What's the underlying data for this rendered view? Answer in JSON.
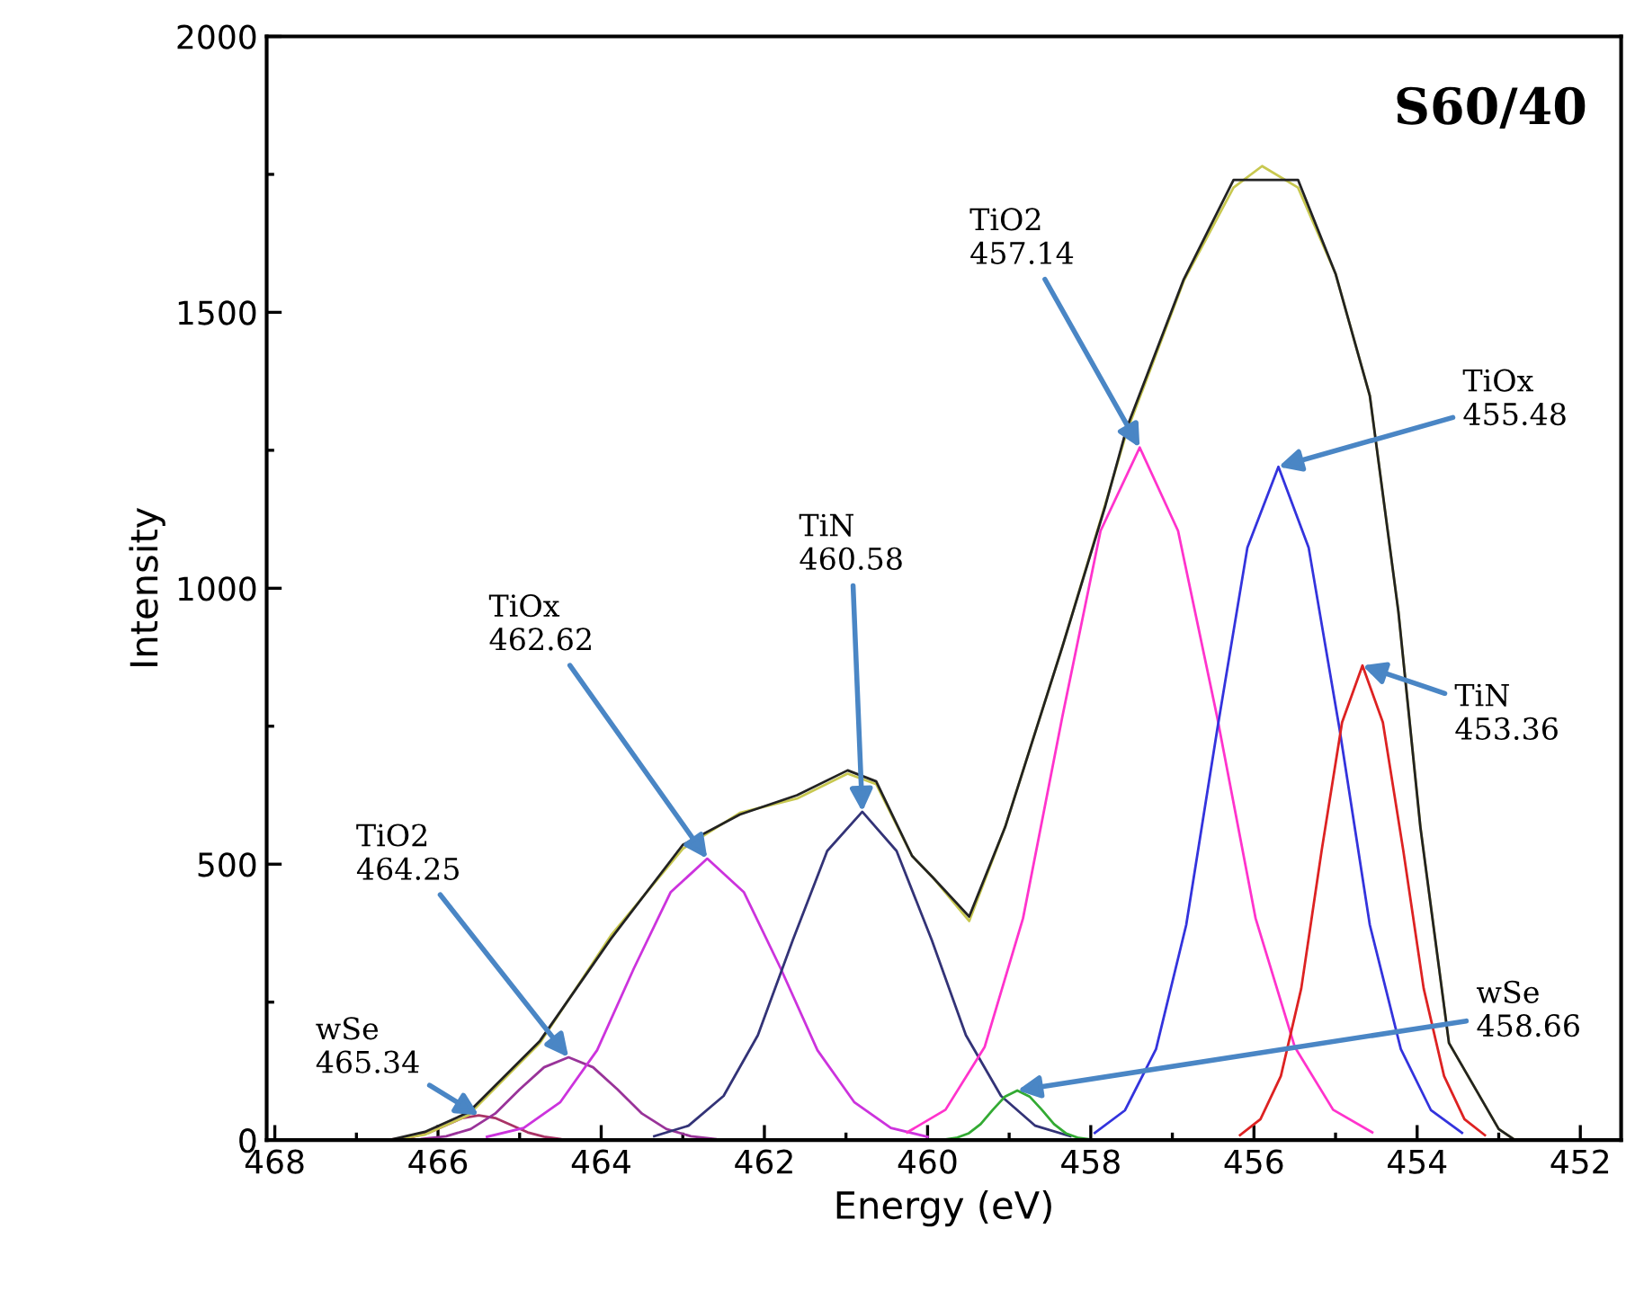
{
  "chart_data": {
    "type": "line",
    "title": "S60/40",
    "xlabel": "Energy (eV)",
    "ylabel": "Intensity",
    "xlim": [
      468.1,
      451.5
    ],
    "ylim": [
      0,
      2000
    ],
    "xticks": [
      468,
      {
        "value": 467,
        "label": null
      },
      466,
      {
        "value": 465,
        "label": null
      },
      464,
      {
        "value": 463,
        "label": null
      },
      462,
      {
        "value": 461,
        "label": null
      },
      460,
      {
        "value": 459,
        "label": null
      },
      458,
      {
        "value": 457,
        "label": null
      },
      456,
      {
        "value": 455,
        "label": null
      },
      454,
      {
        "value": 453,
        "label": null
      },
      452
    ],
    "yticks": [
      0,
      {
        "value": 250,
        "label": null
      },
      500,
      {
        "value": 750,
        "label": null
      },
      1000,
      {
        "value": 1250,
        "label": null
      },
      1500,
      {
        "value": 1750,
        "label": null
      },
      2000
    ],
    "grid": false,
    "legend": false,
    "marker": "none",
    "line_style": "solid",
    "series": [
      {
        "color": "#aa3366",
        "x": [
          466.7,
          466.5,
          466.3,
          466.1,
          465.9,
          465.7,
          465.5,
          465.3,
          465.1,
          464.9,
          464.7,
          464.5
        ],
        "values": [
          0,
          2,
          6,
          14,
          27,
          40,
          45,
          40,
          27,
          14,
          6,
          2
        ]
      },
      {
        "color": "#993399",
        "x": [
          466.2,
          465.9,
          465.6,
          465.3,
          465.0,
          464.7,
          464.4,
          464.1,
          463.8,
          463.5,
          463.2,
          462.9,
          462.6
        ],
        "values": [
          2,
          7,
          20,
          48,
          92,
          132,
          150,
          132,
          92,
          48,
          20,
          7,
          2
        ]
      },
      {
        "color": "#cc33dd",
        "x": [
          465.4,
          464.95,
          464.5,
          464.05,
          463.6,
          463.15,
          462.7,
          462.25,
          461.8,
          461.35,
          460.9,
          460.45,
          460.0
        ],
        "values": [
          6,
          22,
          69,
          163,
          311,
          449,
          510,
          449,
          311,
          163,
          69,
          22,
          6
        ]
      },
      {
        "color": "#333377",
        "x": [
          463.35,
          462.93,
          462.5,
          462.08,
          461.65,
          461.23,
          460.8,
          460.38,
          459.95,
          459.53,
          459.1,
          458.68,
          458.25
        ],
        "values": [
          7,
          26,
          80,
          190,
          363,
          524,
          595,
          524,
          363,
          190,
          80,
          26,
          7
        ]
      },
      {
        "color": "#33aa33",
        "x": [
          459.8,
          459.65,
          459.5,
          459.35,
          459.2,
          459.05,
          458.9,
          458.75,
          458.6,
          458.45,
          458.3,
          458.15,
          458.0
        ],
        "values": [
          1,
          4,
          12,
          29,
          55,
          79,
          90,
          79,
          55,
          29,
          12,
          4,
          1
        ]
      },
      {
        "color": "#ff33cc",
        "x": [
          460.25,
          459.78,
          459.3,
          458.83,
          458.35,
          457.88,
          457.4,
          456.93,
          456.45,
          455.98,
          455.5,
          455.03,
          454.55
        ],
        "values": [
          14,
          55,
          169,
          402,
          766,
          1104,
          1255,
          1104,
          766,
          402,
          169,
          55,
          14
        ]
      },
      {
        "color": "#3333dd",
        "x": [
          457.95,
          457.58,
          457.2,
          456.83,
          456.45,
          456.08,
          455.7,
          455.33,
          454.95,
          454.58,
          454.2,
          453.83,
          453.45
        ],
        "values": [
          13,
          54,
          165,
          390,
          744,
          1074,
          1220,
          1074,
          744,
          390,
          165,
          54,
          13
        ]
      },
      {
        "color": "#dd2222",
        "x": [
          456.17,
          455.92,
          455.67,
          455.42,
          455.17,
          454.92,
          454.67,
          454.42,
          454.17,
          453.92,
          453.67,
          453.42,
          453.17
        ],
        "values": [
          9,
          38,
          116,
          275,
          525,
          757,
          860,
          757,
          525,
          275,
          116,
          38,
          9
        ]
      },
      {
        "color": "#c8c850",
        "x": [
          466.6,
          466.16,
          465.63,
          464.75,
          463.88,
          463.0,
          462.3,
          461.6,
          460.98,
          460.63,
          460.19,
          459.93,
          459.49,
          459.05,
          458.35,
          457.82,
          457.56,
          456.86,
          456.25,
          455.9,
          455.46,
          455.0,
          454.58,
          454.23,
          453.96,
          453.61,
          453.0,
          452.8
        ],
        "values": [
          0,
          10,
          45,
          176,
          371,
          528,
          593,
          619,
          664,
          645,
          515,
          475,
          397,
          567,
          893,
          1153,
          1283,
          1557,
          1726,
          1765,
          1726,
          1570,
          1349,
          958,
          567,
          176,
          20,
          0
        ]
      },
      {
        "color": "#222222",
        "x": [
          466.6,
          466.16,
          465.63,
          464.75,
          463.88,
          463.0,
          462.3,
          461.6,
          460.98,
          460.63,
          460.19,
          459.93,
          459.49,
          459.05,
          458.35,
          457.82,
          457.56,
          456.86,
          456.25,
          455.9,
          455.46,
          455.0,
          454.58,
          454.23,
          453.96,
          453.61,
          453.0,
          452.8
        ],
        "values": [
          0,
          15,
          50,
          180,
          365,
          535,
          590,
          625,
          670,
          650,
          515,
          475,
          405,
          567,
          893,
          1150,
          1290,
          1560,
          1740,
          1740,
          1740,
          1570,
          1349,
          958,
          567,
          176,
          20,
          0
        ]
      }
    ],
    "annotations": [
      {
        "text": "wSe\n465.34",
        "x": 465.5,
        "y": 45
      },
      {
        "text": "TiO2\n464.25",
        "x": 464.4,
        "y": 150
      },
      {
        "text": "TiOx\n462.62",
        "x": 462.7,
        "y": 510
      },
      {
        "text": "TiN\n460.58",
        "x": 460.8,
        "y": 595
      },
      {
        "text": "TiO2\n457.14",
        "x": 457.4,
        "y": 1255
      },
      {
        "text": "TiOx\n455.48",
        "x": 455.7,
        "y": 1220
      },
      {
        "text": "TiN\n453.36",
        "x": 454.67,
        "y": 860
      },
      {
        "text": "wSe\n458.66",
        "x": 458.9,
        "y": 90
      }
    ]
  }
}
